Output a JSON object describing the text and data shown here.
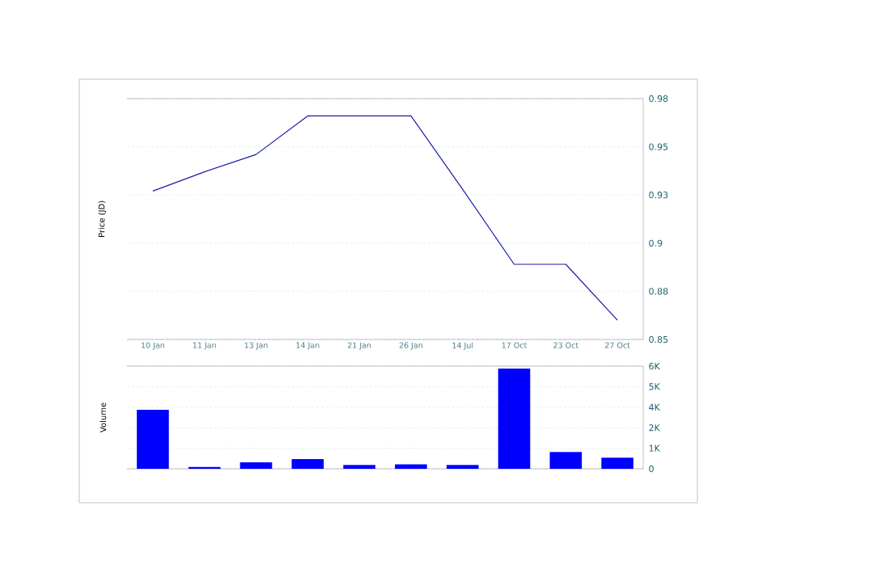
{
  "chart_data": [
    {
      "type": "line",
      "ylabel": "Price (JD)",
      "categories": [
        "10 Jan",
        "11 Jan",
        "13 Jan",
        "14 Jan",
        "21 Jan",
        "26 Jan",
        "14 Jul",
        "17 Oct",
        "23 Oct",
        "27 Oct"
      ],
      "series": [
        {
          "color": "#1a1aa8",
          "values": [
            0.927,
            0.937,
            0.946,
            0.966,
            0.966,
            0.966,
            0.928,
            0.889,
            0.889,
            0.86
          ]
        }
      ],
      "ylim": [
        0.85,
        0.975
      ],
      "yticks": [
        {
          "value": 0.85,
          "label": "0.85"
        },
        {
          "value": 0.875,
          "label": "0.88"
        },
        {
          "value": 0.9,
          "label": "0.9"
        },
        {
          "value": 0.925,
          "label": "0.93"
        },
        {
          "value": 0.95,
          "label": "0.95"
        },
        {
          "value": 0.975,
          "label": "0.98"
        }
      ],
      "grid": "y"
    },
    {
      "type": "bar",
      "ylabel": "Volume",
      "categories": [
        null,
        null,
        null,
        null,
        null,
        null,
        null,
        null,
        null,
        null
      ],
      "series": [
        {
          "color": "#0000ff",
          "values": [
            3450,
            100,
            380,
            570,
            220,
            260,
            220,
            5860,
            980,
            650
          ]
        }
      ],
      "ylim": [
        0,
        6000
      ],
      "yticks": [
        {
          "value": 0,
          "label": "0"
        },
        {
          "value": 1200,
          "label": "1K"
        },
        {
          "value": 2400,
          "label": "2K"
        },
        {
          "value": 3600,
          "label": "4K"
        },
        {
          "value": 4800,
          "label": "5K"
        },
        {
          "value": 6000,
          "label": "6K"
        }
      ],
      "grid": "y",
      "tick_labels": "y"
    }
  ]
}
